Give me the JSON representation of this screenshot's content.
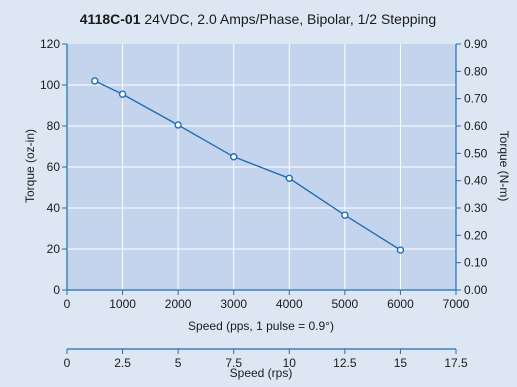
{
  "chart_data": {
    "type": "line",
    "title_bold": "4118C-01",
    "title_rest": " 24VDC, 2.0 Amps/Phase, Bipolar, 1/2 Stepping",
    "xlabel": "Speed (pps, 1 pulse = 0.9°)",
    "ylabel": "Torque (oz-in)",
    "y2label": "Torque (N-m)",
    "x2label": "Speed (rps)",
    "xlim": [
      0,
      7000
    ],
    "ylim": [
      0,
      120
    ],
    "y2lim": [
      0,
      0.9
    ],
    "x2lim": [
      0,
      17.5
    ],
    "x_ticks": [
      "0",
      "1000",
      "2000",
      "3000",
      "4000",
      "5000",
      "6000",
      "7000"
    ],
    "y_ticks": [
      "0",
      "20",
      "40",
      "60",
      "80",
      "100",
      "120"
    ],
    "y2_ticks": [
      "0.00",
      "0.10",
      "0.20",
      "0.30",
      "0.40",
      "0.50",
      "0.60",
      "0.70",
      "0.80",
      "0.90"
    ],
    "x2_ticks": [
      "0",
      "2.5",
      "5",
      "7.5",
      "10",
      "12.5",
      "15",
      "17.5"
    ],
    "grid": true,
    "series": [
      {
        "x": [
          500,
          1000,
          2000,
          3000,
          4000,
          5000,
          6000
        ],
        "y": [
          102,
          95.5,
          80.5,
          65,
          54.5,
          36.5,
          19.5
        ]
      }
    ],
    "colors": {
      "background": "#dde7f3",
      "plot_bg": "#c3d4ec",
      "grid": "#ffffff",
      "axis": "#1f6fb6",
      "line": "#1f6fb6",
      "marker_fill": "#ffffff"
    }
  }
}
